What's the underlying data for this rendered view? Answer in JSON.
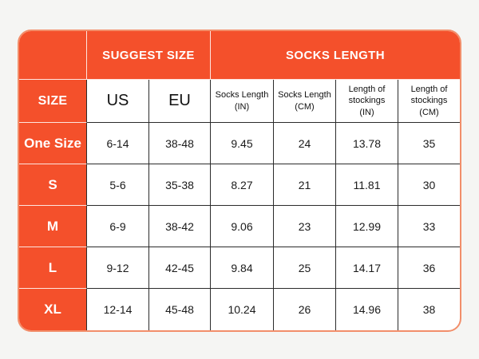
{
  "page": {
    "background_color": "#f5f5f3"
  },
  "table": {
    "accent_color": "#f4502b",
    "outer_border_color": "#f28e6a",
    "grid_line_color": "#2b2b2b",
    "col_headers_multiline": [
      "Socks Length\n(IN)",
      "Socks Length\n(CM)",
      "Length of\nstockings\n(IN)",
      "Length of\nstockings\n(CM)"
    ]
  },
  "chart_data": {
    "type": "table",
    "title": "",
    "column_groups": [
      {
        "label": "",
        "span": 1
      },
      {
        "label": "SUGGEST SIZE",
        "span": 2
      },
      {
        "label": "SOCKS LENGTH",
        "span": 4
      }
    ],
    "columns": [
      "SIZE",
      "US",
      "EU",
      "Socks Length (IN)",
      "Socks Length (CM)",
      "Length of stockings (IN)",
      "Length of stockings (CM)"
    ],
    "rows": [
      [
        "One Size",
        "6-14",
        "38-48",
        "9.45",
        "24",
        "13.78",
        "35"
      ],
      [
        "S",
        "5-6",
        "35-38",
        "8.27",
        "21",
        "11.81",
        "30"
      ],
      [
        "M",
        "6-9",
        "38-42",
        "9.06",
        "23",
        "12.99",
        "33"
      ],
      [
        "L",
        "9-12",
        "42-45",
        "9.84",
        "25",
        "14.17",
        "36"
      ],
      [
        "XL",
        "12-14",
        "45-48",
        "10.24",
        "26",
        "14.96",
        "38"
      ]
    ]
  }
}
